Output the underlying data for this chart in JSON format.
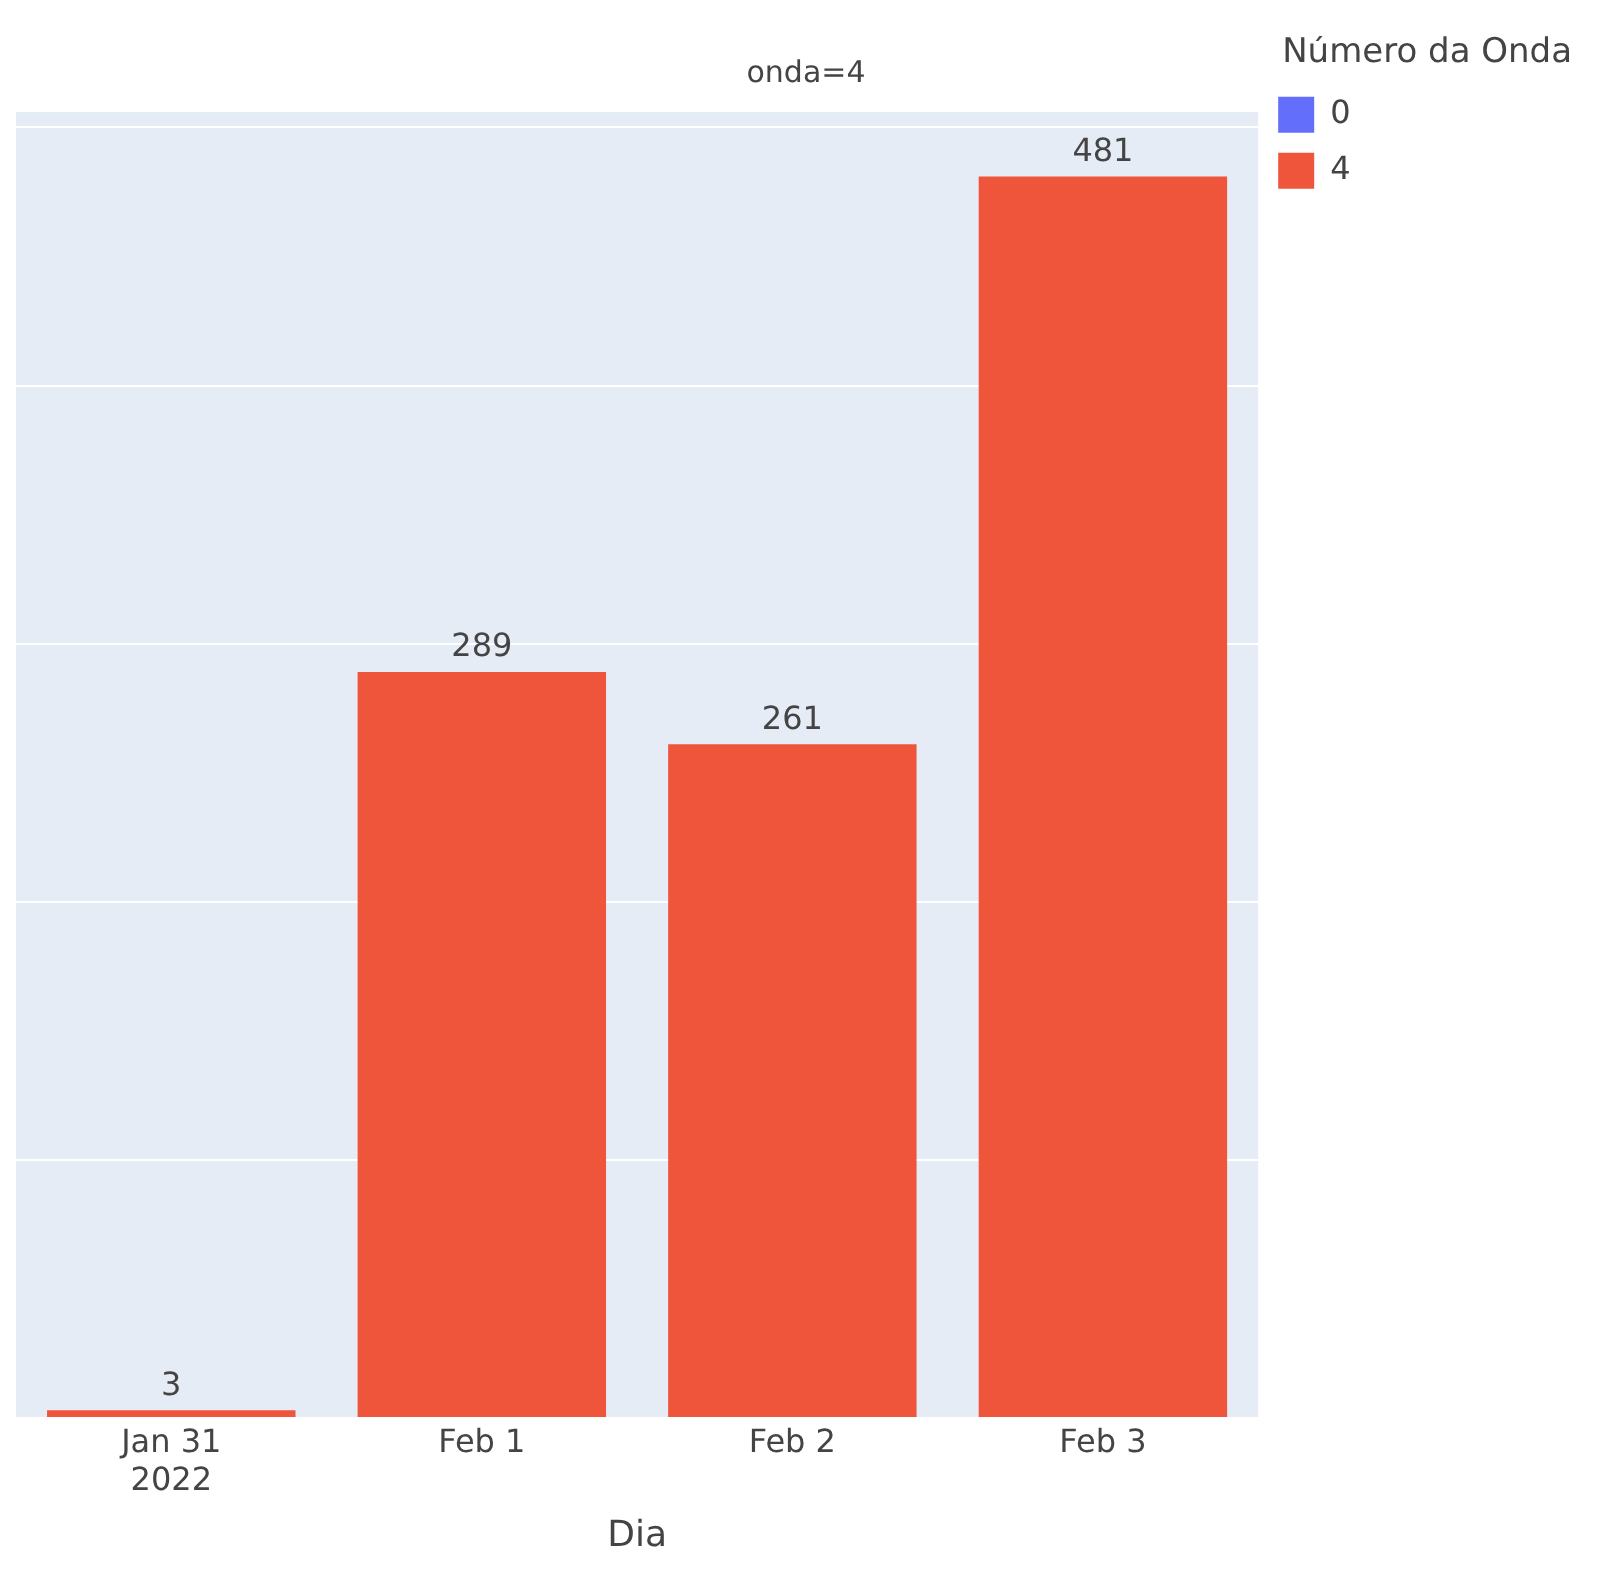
{
  "chart_data": {
    "type": "bar",
    "title": "onda=4",
    "xlabel": "Dia",
    "legend_title": "Número da Onda",
    "categories": [
      "Jan 31\n2022",
      "Feb 1",
      "Feb 2",
      "Feb 3"
    ],
    "series": [
      {
        "name": "0",
        "color": "#636efa",
        "values": [
          null,
          null,
          null,
          null
        ]
      },
      {
        "name": "4",
        "color": "#ef553b",
        "values": [
          3,
          289,
          261,
          481
        ]
      }
    ],
    "stacked": true,
    "ylim": [
      0,
      506
    ],
    "yticks": [
      {
        "value": 0,
        "label": null
      },
      {
        "value": 100,
        "label": null
      },
      {
        "value": 200,
        "label": null
      },
      {
        "value": 300,
        "label": null
      },
      {
        "value": 400,
        "label": null
      },
      {
        "value": 500,
        "label": null
      }
    ],
    "tick_labels": "x",
    "grid": "y",
    "legend": "top right",
    "data_labels": true
  }
}
